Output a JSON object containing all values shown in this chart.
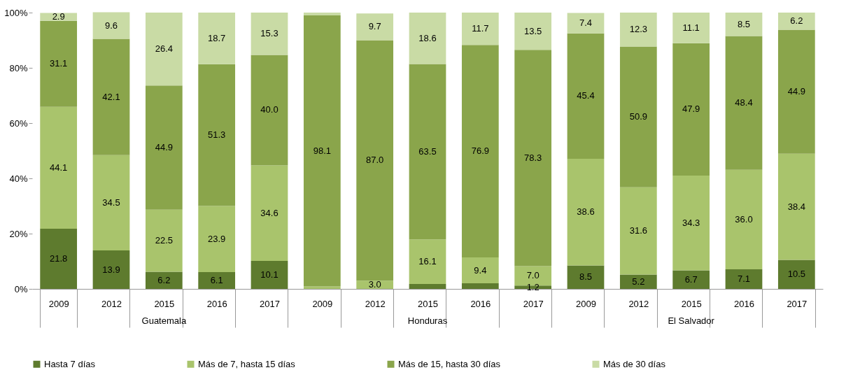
{
  "chart_data": {
    "type": "bar",
    "stacked": true,
    "categories": [
      "2009",
      "2012",
      "2015",
      "2016",
      "2017",
      "2009",
      "2012",
      "2015",
      "2016",
      "2017",
      "2009",
      "2012",
      "2015",
      "2016",
      "2017"
    ],
    "annotations": [
      "Guatemala",
      "Honduras",
      "El Salvador"
    ],
    "series": [
      {
        "name": "Hasta 7 días",
        "color": "#5e7b2e",
        "values": [
          21.8,
          13.9,
          6.2,
          6.1,
          10.1,
          0,
          0,
          1.8,
          2.0,
          1.2,
          8.5,
          5.2,
          6.7,
          7.1,
          10.5
        ],
        "value_labels": [
          "21.8",
          "13.9",
          "6.2",
          "6.1",
          "10.1",
          null,
          null,
          null,
          null,
          "1.2",
          "8.5",
          "5.2",
          "6.7",
          "7.1",
          "10.5"
        ]
      },
      {
        "name": "Más de 7, hasta 15 días",
        "color": "#a9c46c",
        "values": [
          44.1,
          34.5,
          22.5,
          23.9,
          34.6,
          0.9,
          3.0,
          16.1,
          9.4,
          7.0,
          38.6,
          31.6,
          34.3,
          36.0,
          38.4
        ],
        "value_labels": [
          "44.1",
          "34.5",
          "22.5",
          "23.9",
          "34.6",
          null,
          "3.0",
          "16.1",
          "9.4",
          "7.0",
          "38.6",
          "31.6",
          "34.3",
          "36.0",
          "38.4"
        ]
      },
      {
        "name": "Más de 15, hasta 30 días",
        "color": "#8aa54b",
        "values": [
          31.1,
          42.1,
          44.9,
          51.3,
          40.0,
          98.1,
          87.0,
          63.5,
          76.9,
          78.3,
          45.4,
          50.9,
          47.9,
          48.4,
          44.9
        ],
        "value_labels": [
          "31.1",
          "42.1",
          "44.9",
          "51.3",
          "40.0",
          "98.1",
          "87.0",
          "63.5",
          "76.9",
          "78.3",
          "45.4",
          "50.9",
          "47.9",
          "48.4",
          "44.9"
        ]
      },
      {
        "name": "Más de 30 días",
        "color": "#c9dba5",
        "values": [
          2.9,
          9.6,
          26.4,
          18.7,
          15.3,
          1.0,
          9.7,
          18.6,
          11.7,
          13.5,
          7.4,
          12.3,
          11.1,
          8.5,
          6.2
        ],
        "value_labels": [
          "2.9",
          "9.6",
          "26.4",
          "18.7",
          "15.3",
          null,
          "9.7",
          "18.6",
          "11.7",
          "13.5",
          "7.4",
          "12.3",
          "11.1",
          "8.5",
          "6.2"
        ]
      }
    ],
    "ylim": [
      0,
      100
    ],
    "yticks": [
      {
        "value": 0,
        "label": "0%"
      },
      {
        "value": 20,
        "label": "20%"
      },
      {
        "value": 40,
        "label": "40%"
      },
      {
        "value": 60,
        "label": "60%"
      },
      {
        "value": 80,
        "label": "80%"
      },
      {
        "value": 100,
        "label": "100%"
      }
    ],
    "grid": false,
    "legend": "bottom"
  }
}
